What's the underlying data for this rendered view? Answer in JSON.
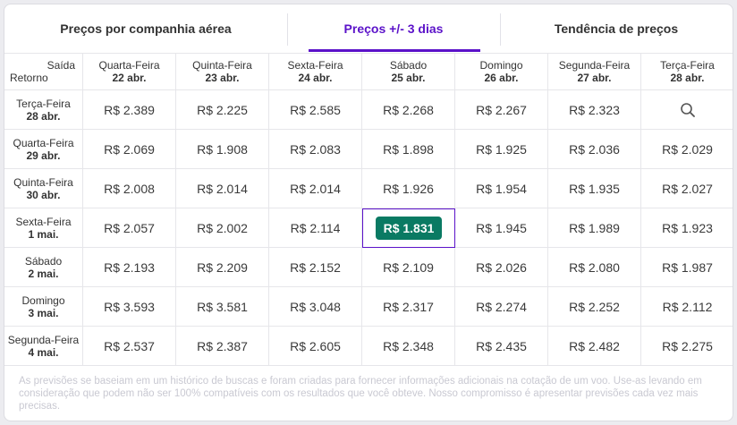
{
  "tabs": [
    "Preços por companhia aérea",
    "Preços +/- 3 dias",
    "Tendência de preços"
  ],
  "active_tab": 1,
  "table": {
    "corner": {
      "top": "Saída",
      "bottom": "Retorno"
    },
    "columns": [
      {
        "day": "Quarta-Feira",
        "date": "22 abr."
      },
      {
        "day": "Quinta-Feira",
        "date": "23 abr."
      },
      {
        "day": "Sexta-Feira",
        "date": "24 abr."
      },
      {
        "day": "Sábado",
        "date": "25 abr."
      },
      {
        "day": "Domingo",
        "date": "26 abr."
      },
      {
        "day": "Segunda-Feira",
        "date": "27 abr."
      },
      {
        "day": "Terça-Feira",
        "date": "28 abr."
      }
    ],
    "rows": [
      {
        "day": "Terça-Feira",
        "date": "28 abr.",
        "prices": [
          "R$ 2.389",
          "R$ 2.225",
          "R$ 2.585",
          "R$ 2.268",
          "R$ 2.267",
          "R$ 2.323",
          null
        ]
      },
      {
        "day": "Quarta-Feira",
        "date": "29 abr.",
        "prices": [
          "R$ 2.069",
          "R$ 1.908",
          "R$ 2.083",
          "R$ 1.898",
          "R$ 1.925",
          "R$ 2.036",
          "R$ 2.029"
        ]
      },
      {
        "day": "Quinta-Feira",
        "date": "30 abr.",
        "prices": [
          "R$ 2.008",
          "R$ 2.014",
          "R$ 2.014",
          "R$ 1.926",
          "R$ 1.954",
          "R$ 1.935",
          "R$ 2.027"
        ]
      },
      {
        "day": "Sexta-Feira",
        "date": "1 mai.",
        "prices": [
          "R$ 2.057",
          "R$ 2.002",
          "R$ 2.114",
          "R$ 1.831",
          "R$ 1.945",
          "R$ 1.989",
          "R$ 1.923"
        ]
      },
      {
        "day": "Sábado",
        "date": "2 mai.",
        "prices": [
          "R$ 2.193",
          "R$ 2.209",
          "R$ 2.152",
          "R$ 2.109",
          "R$ 2.026",
          "R$ 2.080",
          "R$ 1.987"
        ]
      },
      {
        "day": "Domingo",
        "date": "3 mai.",
        "prices": [
          "R$ 3.593",
          "R$ 3.581",
          "R$ 3.048",
          "R$ 2.317",
          "R$ 2.274",
          "R$ 2.252",
          "R$ 2.112"
        ]
      },
      {
        "day": "Segunda-Feira",
        "date": "4 mai.",
        "prices": [
          "R$ 2.537",
          "R$ 2.387",
          "R$ 2.605",
          "R$ 2.348",
          "R$ 2.435",
          "R$ 2.482",
          "R$ 2.275"
        ]
      }
    ],
    "highlight": {
      "row": 3,
      "col": 3
    }
  },
  "note": "As previsões se baseiam em um histórico de buscas e foram criadas para fornecer informações adicionais na cotação de um voo. Use-as levando em consideração que podem não ser 100% compatíveis com os resultados que você obteve. Nosso compromisso é apresentar previsões cada vez mais precisas."
}
